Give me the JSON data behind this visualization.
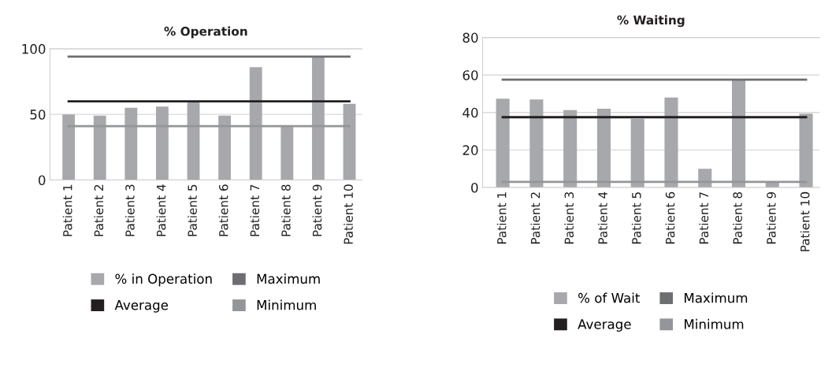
{
  "chart_data": [
    {
      "type": "bar",
      "title": "% Operation",
      "categories": [
        "Patient 1",
        "Patient 2",
        "Patient 3",
        "Patient 4",
        "Patient 5",
        "Patient 6",
        "Patient 7",
        "Patient 8",
        "Patient 9",
        "Patient 10"
      ],
      "ylim": [
        0,
        100
      ],
      "yticks": [
        0,
        50,
        100
      ],
      "grid": "y",
      "legend": "bottom",
      "marker": "none",
      "series": [
        {
          "name": "% in Operation",
          "color": "#a7a8ab",
          "values": [
            50,
            49,
            55,
            56,
            60,
            49,
            86,
            41,
            94,
            58
          ]
        },
        {
          "name": "Maximum",
          "type": "line",
          "color": "#6d6e71",
          "values": [
            94,
            94,
            94,
            94,
            94,
            94,
            94,
            94,
            94,
            94
          ]
        },
        {
          "name": "Average",
          "type": "line",
          "color": "#231f20",
          "values": [
            60,
            60,
            60,
            60,
            60,
            60,
            60,
            60,
            60,
            60
          ]
        },
        {
          "name": "Minimum",
          "type": "line",
          "color": "#939598",
          "values": [
            41,
            41,
            41,
            41,
            41,
            41,
            41,
            41,
            41,
            41
          ]
        }
      ]
    },
    {
      "type": "bar",
      "title": "% Waiting",
      "categories": [
        "Patient 1",
        "Patient 2",
        "Patient 3",
        "Patient 4",
        "Patient 5",
        "Patient 6",
        "Patient 7",
        "Patient 8",
        "Patient 9",
        "Patient 10"
      ],
      "ylim": [
        0,
        80
      ],
      "yticks": [
        0,
        20,
        40,
        60,
        80
      ],
      "grid": "y",
      "legend": "bottom",
      "marker": "none",
      "series": [
        {
          "name": "% of Wait",
          "color": "#a7a8ab",
          "values": [
            47.4,
            47,
            41.3,
            42,
            36.7,
            48,
            10,
            57.5,
            3,
            39.4
          ]
        },
        {
          "name": "Maximum",
          "type": "line",
          "color": "#6d6e71",
          "values": [
            57.5,
            57.5,
            57.5,
            57.5,
            57.5,
            57.5,
            57.5,
            57.5,
            57.5,
            57.5
          ]
        },
        {
          "name": "Average",
          "type": "line",
          "color": "#231f20",
          "values": [
            37.5,
            37.5,
            37.5,
            37.5,
            37.5,
            37.5,
            37.5,
            37.5,
            37.5,
            37.5
          ]
        },
        {
          "name": "Minimum",
          "type": "line",
          "color": "#939598",
          "values": [
            3,
            3,
            3,
            3,
            3,
            3,
            3,
            3,
            3,
            3
          ]
        }
      ]
    }
  ]
}
